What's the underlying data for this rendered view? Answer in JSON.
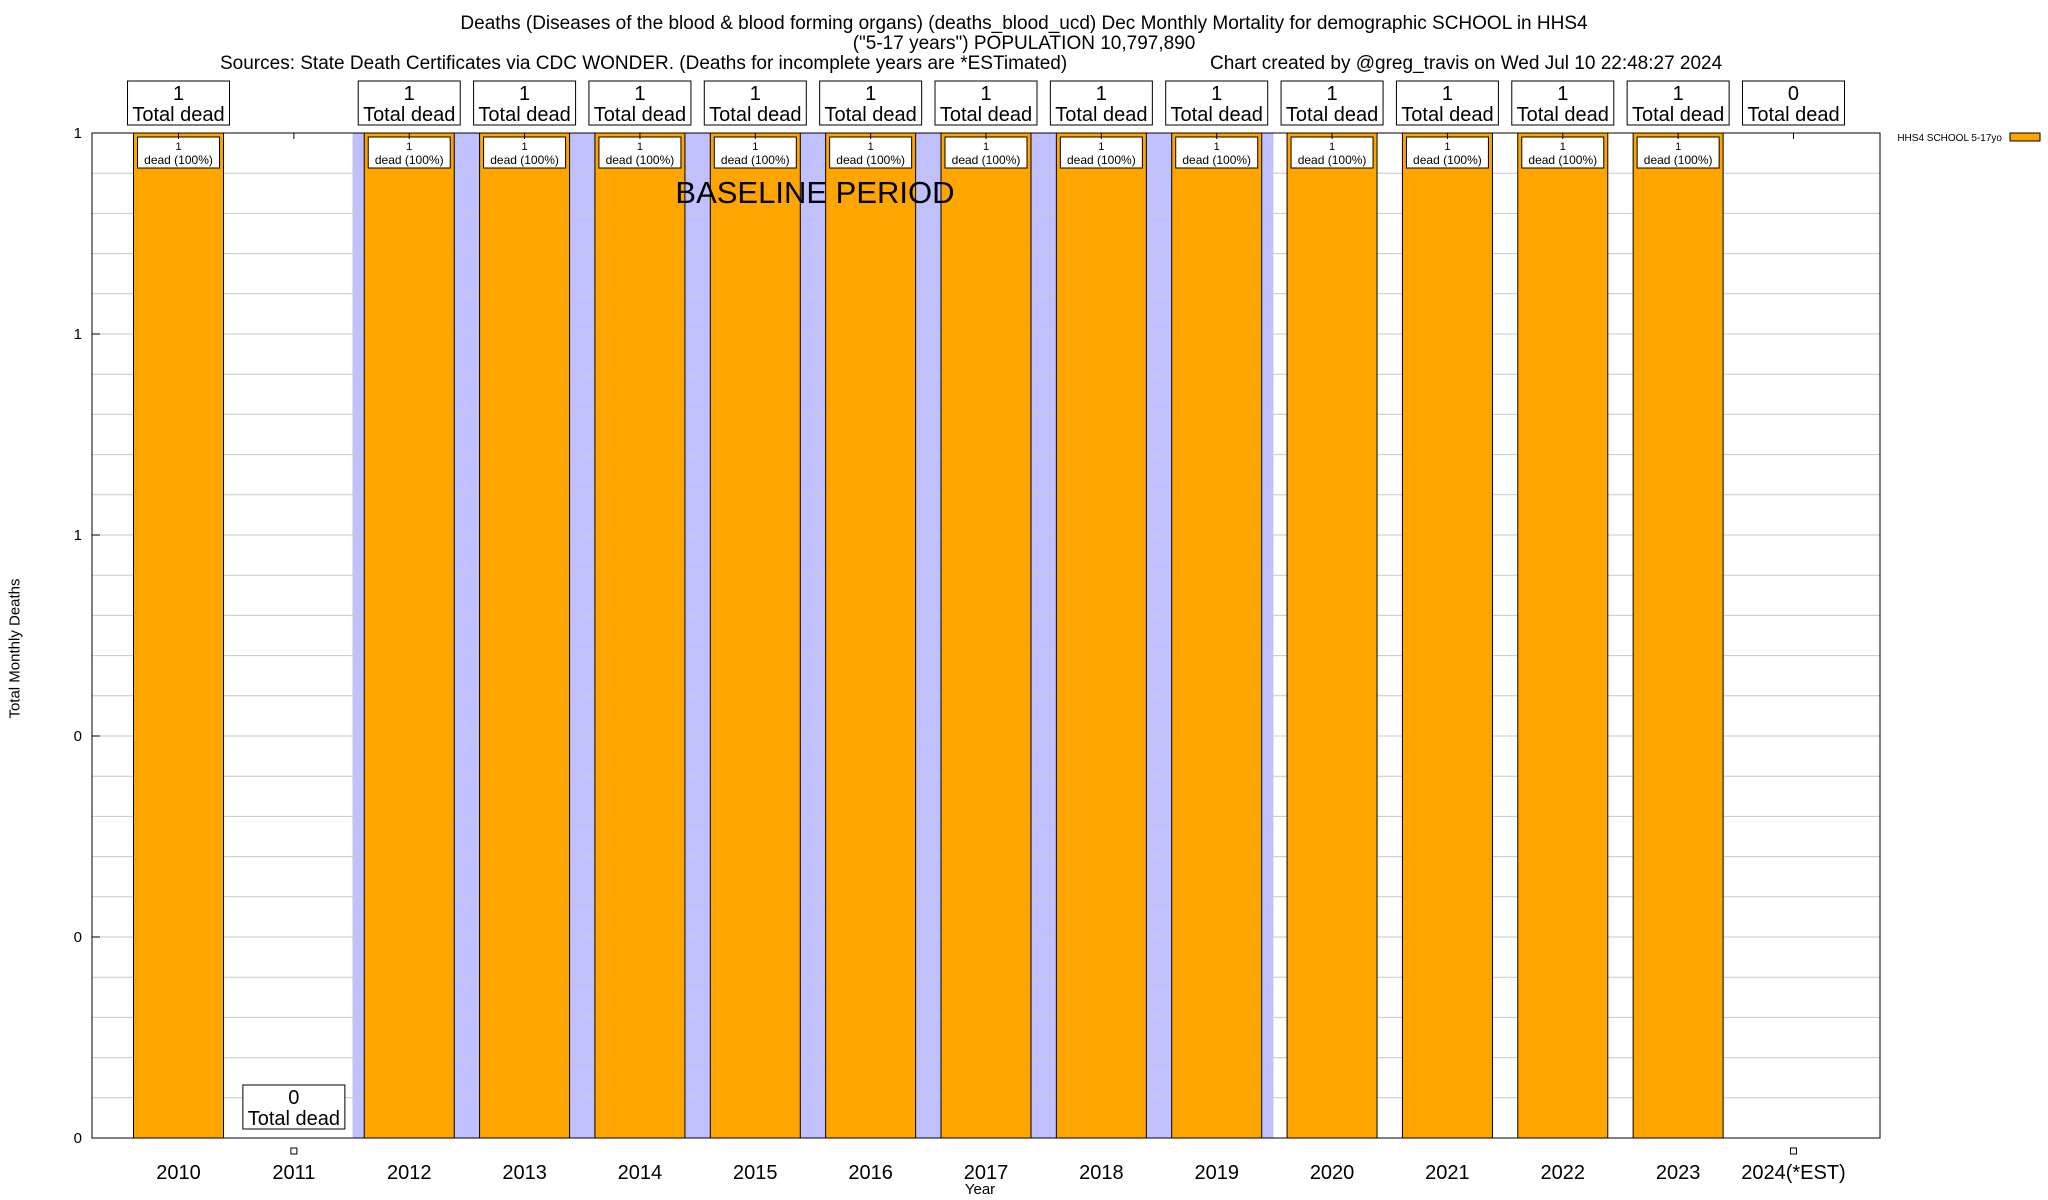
{
  "title_lines": [
    "Deaths (Diseases of the blood & blood forming organs) (deaths_blood_ucd) Dec Monthly Mortality for demographic SCHOOL in HHS4",
    "(\"5-17 years\") POPULATION 10,797,890"
  ],
  "sources": "Sources: State Death Certificates via CDC WONDER. (Deaths for incomplete years are *ESTimated)",
  "credit": "Chart created by @greg_travis on Wed Jul 10 22:48:27 2024",
  "chart_data": {
    "type": "bar",
    "xlabel": "Year",
    "ylabel": "Total Monthly Deaths",
    "ylim": [
      0,
      1
    ],
    "y_tick_labels": [
      "0",
      "0",
      "0",
      "1",
      "1",
      "1"
    ],
    "categories": [
      "2010",
      "2011",
      "2012",
      "2013",
      "2014",
      "2015",
      "2016",
      "2017",
      "2018",
      "2019",
      "2020",
      "2021",
      "2022",
      "2023",
      "2024(*EST)"
    ],
    "series": [
      {
        "name": "HHS4 SCHOOL 5-17yo",
        "color": "#ffa500",
        "values": [
          1,
          0,
          1,
          1,
          1,
          1,
          1,
          1,
          1,
          1,
          1,
          1,
          1,
          1,
          0
        ]
      }
    ],
    "total_labels": [
      "1",
      "0",
      "1",
      "1",
      "1",
      "1",
      "1",
      "1",
      "1",
      "1",
      "1",
      "1",
      "1",
      "1",
      "0"
    ],
    "total_suffix": "Total dead",
    "bar_label_counts": [
      "1",
      "",
      "1",
      "1",
      "1",
      "1",
      "1",
      "1",
      "1",
      "1",
      "1",
      "1",
      "1",
      "1",
      ""
    ],
    "bar_label_text": "dead (100%)",
    "baseline": {
      "label": "BASELINE PERIOD",
      "from": "2012",
      "to": "2019",
      "color": "#c0c0ff"
    },
    "grid": true,
    "legend": {
      "position": "top-right",
      "color": "#ffa500"
    }
  }
}
